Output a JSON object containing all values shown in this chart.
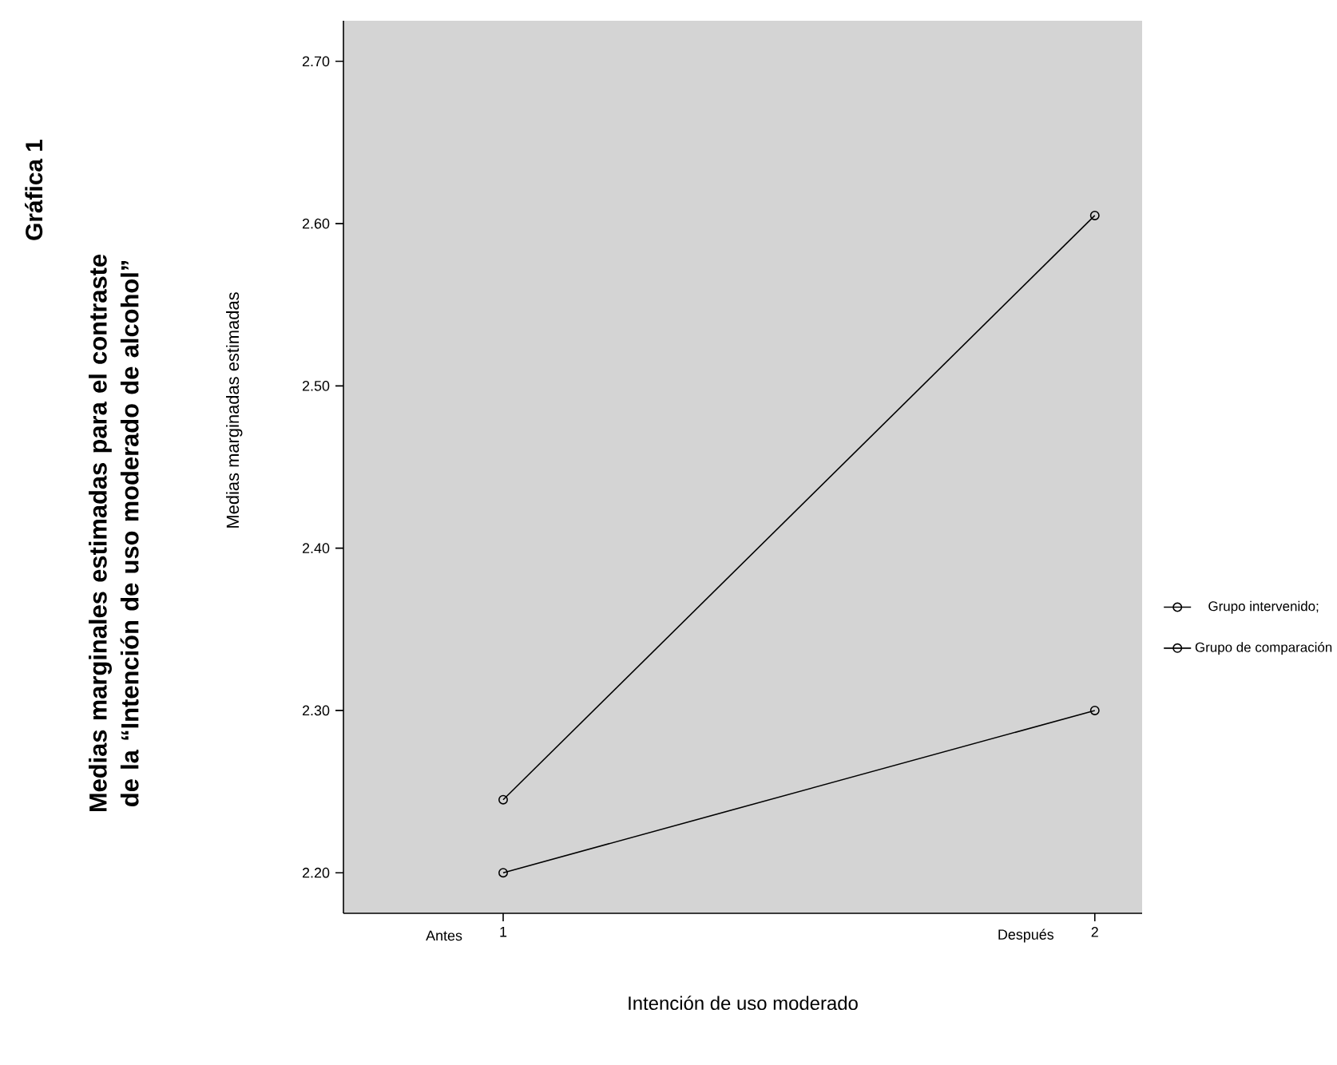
{
  "chart_data": {
    "type": "line",
    "title": "Gráfica 1",
    "subtitle": "Medias marginales estimadas para el contraste de la “Intención de uso moderado de alcohol”",
    "xlabel": "Intención de uso moderado",
    "ylabel": "Medias marginadas estimadas",
    "x": [
      1,
      2
    ],
    "series": [
      {
        "name": "Grupo intervenido;",
        "color": "#000000",
        "values": [
          2.245,
          2.605
        ]
      },
      {
        "name": "Grupo de comparación",
        "color": "#000000",
        "values": [
          2.2,
          2.3
        ]
      }
    ],
    "xlim": [
      0.73,
      2.08
    ],
    "xticks": [
      1,
      2
    ],
    "ylim": [
      2.175,
      2.725
    ],
    "yticks": [
      {
        "value": 2.2,
        "label": "2.20"
      },
      {
        "value": 2.3,
        "label": "2.30"
      },
      {
        "value": 2.4,
        "label": "2.40"
      },
      {
        "value": 2.5,
        "label": "2.50"
      },
      {
        "value": 2.6,
        "label": "2.60"
      },
      {
        "value": 2.7,
        "label": "2.70"
      }
    ],
    "annotations": [
      "Antes",
      "Después"
    ],
    "marker": "circle",
    "line_style": "solid",
    "grid": false,
    "legend": "right"
  }
}
